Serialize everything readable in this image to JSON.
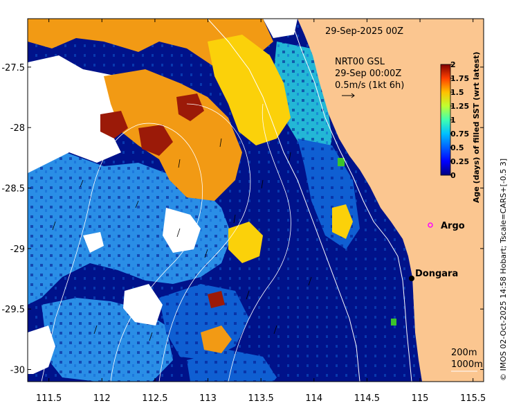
{
  "map": {
    "date_title": "29-Sep-2025 00Z",
    "product": {
      "line1": "NRT00 GSL",
      "line2": "29-Sep 00:00Z",
      "line3": "0.5m/s (1kt 6h)"
    },
    "lon_ticks": [
      "111.5",
      "112",
      "112.5",
      "113",
      "113.5",
      "114",
      "114.5",
      "115",
      "115.5"
    ],
    "lat_ticks": [
      "-27.5",
      "-28",
      "-28.5",
      "-29",
      "-29.5",
      "-30"
    ],
    "lon_values": [
      111.5,
      112,
      112.5,
      113,
      113.5,
      114,
      114.5,
      115,
      115.5
    ],
    "lat_values": [
      -27.5,
      -28,
      -28.5,
      -29,
      -29.5,
      -30
    ],
    "extent": {
      "lon_min": 111.3,
      "lon_max": 115.6,
      "lat_min": -30.1,
      "lat_max": -27.1
    },
    "places": [
      {
        "name": "Dongara",
        "lon": 114.93,
        "lat": -29.25,
        "kind": "town"
      },
      {
        "name": "Argo",
        "lon": 115.12,
        "lat": -28.9,
        "kind": "argo-float"
      }
    ],
    "depth_contours": {
      "line1": "200m",
      "line2": "1000m"
    },
    "credit": "© IMOS 02-Oct-2025 14:58 Hobart; Tscale=CARS+[-0.5 3]"
  },
  "colorbar": {
    "label": "Age (days) of filled SST (wrt latest)",
    "ticks": [
      "2",
      "1.75",
      "1.5",
      "1.25",
      "1",
      "0.75",
      "0.5",
      "0.25",
      "0"
    ],
    "range": [
      0,
      2
    ],
    "colors": [
      "#00007f",
      "#0000ff",
      "#007fff",
      "#00ffff",
      "#7fff7f",
      "#ffff00",
      "#ff7f00",
      "#ff0000",
      "#7f0000"
    ]
  },
  "palette": {
    "land": "#fbc690",
    "no_data": "#ffffff",
    "age_0": "#00128a",
    "age_low": "#0f5fd2",
    "age_lowmid": "#2a8ee6",
    "age_cyan": "#23b7d6",
    "age_green": "#3cc42a",
    "age_yellow": "#fbd10a",
    "age_orange": "#f29a14",
    "age_high": "#9b1a08"
  }
}
